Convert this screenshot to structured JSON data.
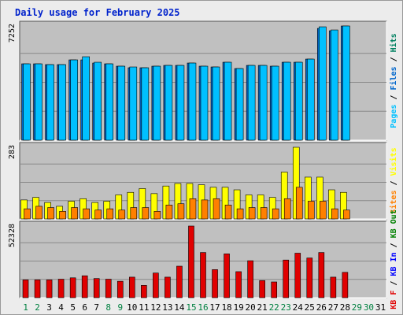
{
  "title": "Daily usage for February 2025",
  "colors": {
    "pages": "#00c0ff",
    "files": "#0066cc",
    "hits": "#008060",
    "visits": "#ffff00",
    "sites": "#ff8000",
    "kbin": "#0000ff",
    "kbout": "#008000",
    "kbf": "#e00000",
    "weekend_day": "#008040",
    "panel_bg": "#c0c0c0"
  },
  "chart_data": [
    {
      "type": "bar",
      "panel": "hits",
      "ymax_label": "7252",
      "ymax": 7252,
      "x": [
        1,
        2,
        3,
        4,
        5,
        6,
        7,
        8,
        9,
        10,
        11,
        12,
        13,
        14,
        15,
        16,
        17,
        18,
        19,
        20,
        21,
        22,
        23,
        24,
        25,
        26,
        27,
        28
      ],
      "series": [
        {
          "name": "Pages",
          "values": [
            4850,
            4850,
            4800,
            4800,
            5100,
            5100,
            4900,
            4850,
            4700,
            4600,
            4600,
            4700,
            4750,
            4750,
            4900,
            4700,
            4650,
            4950,
            4550,
            4750,
            4750,
            4700,
            4950,
            4950,
            5150,
            7100,
            6950,
            7252
          ]
        },
        {
          "name": "Files",
          "values": [
            4850,
            4850,
            4800,
            4800,
            5100,
            5300,
            4950,
            4850,
            4700,
            4650,
            4600,
            4700,
            4750,
            4750,
            4900,
            4700,
            4650,
            4950,
            4550,
            4750,
            4750,
            4700,
            4950,
            4950,
            5150,
            7200,
            7000,
            7252
          ]
        }
      ],
      "axis_label_parts": [
        {
          "text": "Pages",
          "color_key": "pages"
        },
        {
          "text": " / ",
          "color_key": "sep"
        },
        {
          "text": "Files",
          "color_key": "files"
        },
        {
          "text": " / ",
          "color_key": "sep"
        },
        {
          "text": "Hits",
          "color_key": "hits"
        }
      ]
    },
    {
      "type": "bar",
      "panel": "visits",
      "ymax_label": "283",
      "ymax": 283,
      "x": [
        1,
        2,
        3,
        4,
        5,
        6,
        7,
        8,
        9,
        10,
        11,
        12,
        13,
        14,
        15,
        16,
        17,
        18,
        19,
        20,
        21,
        22,
        23,
        24,
        25,
        26,
        27,
        28
      ],
      "series": [
        {
          "name": "Visits",
          "values": [
            75,
            85,
            65,
            50,
            70,
            80,
            65,
            70,
            95,
            105,
            120,
            100,
            130,
            140,
            140,
            135,
            125,
            125,
            115,
            95,
            95,
            85,
            185,
            283,
            165,
            165,
            115,
            105
          ]
        },
        {
          "name": "Sites",
          "values": [
            40,
            50,
            45,
            30,
            45,
            40,
            35,
            40,
            35,
            45,
            45,
            30,
            55,
            60,
            80,
            75,
            80,
            55,
            40,
            45,
            45,
            40,
            80,
            125,
            70,
            70,
            40,
            35
          ]
        }
      ],
      "axis_label_parts": [
        {
          "text": "Sites",
          "color_key": "sites"
        },
        {
          "text": " / ",
          "color_key": "sep"
        },
        {
          "text": "Visits",
          "color_key": "visits"
        }
      ]
    },
    {
      "type": "bar",
      "panel": "kbytes",
      "ymax_label": "52328",
      "ymax": 52328,
      "x": [
        1,
        2,
        3,
        4,
        5,
        6,
        7,
        8,
        9,
        10,
        11,
        12,
        13,
        14,
        15,
        16,
        17,
        18,
        19,
        20,
        21,
        22,
        23,
        24,
        25,
        26,
        27,
        28
      ],
      "series": [
        {
          "name": "KB F",
          "values": [
            13000,
            13000,
            13000,
            13500,
            14500,
            16000,
            14000,
            13500,
            12000,
            15000,
            9000,
            18000,
            15000,
            23000,
            52328,
            33000,
            20500,
            32000,
            19000,
            27000,
            12500,
            11500,
            27500,
            32500,
            29000,
            33000,
            15000,
            18500
          ]
        }
      ],
      "axis_label_parts": [
        {
          "text": "KB F",
          "color_key": "kbf"
        },
        {
          "text": " / ",
          "color_key": "sep"
        },
        {
          "text": "KB In",
          "color_key": "kbin"
        },
        {
          "text": " / ",
          "color_key": "sep"
        },
        {
          "text": "KB Out",
          "color_key": "kbout"
        }
      ]
    }
  ],
  "x_axis": {
    "days": [
      "1",
      "2",
      "3",
      "4",
      "5",
      "6",
      "7",
      "8",
      "9",
      "10",
      "11",
      "12",
      "13",
      "14",
      "15",
      "16",
      "17",
      "18",
      "19",
      "20",
      "21",
      "22",
      "23",
      "24",
      "25",
      "26",
      "27",
      "28",
      "29",
      "30",
      "31"
    ],
    "weekend_days": [
      1,
      2,
      8,
      9,
      15,
      16,
      22,
      23,
      29,
      30
    ]
  }
}
